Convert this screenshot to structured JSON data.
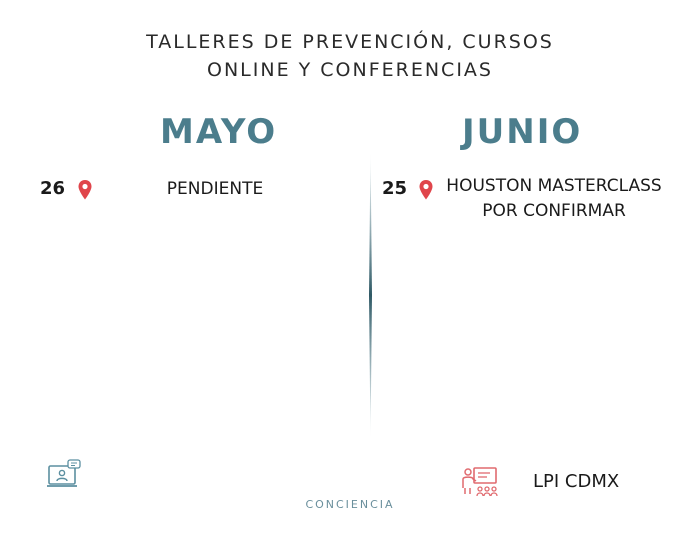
{
  "header": {
    "line1": "TALLERES DE PREVENCIÓN, CURSOS",
    "line2": "ONLINE Y CONFERENCIAS"
  },
  "months": {
    "left": "MAYO",
    "right": "JUNIO"
  },
  "events": {
    "may": {
      "day": "26",
      "text": "PENDIENTE"
    },
    "june": {
      "day": "25",
      "line1": "HOUSTON MASTERCLASS",
      "line2": "POR CONFIRMAR"
    }
  },
  "footer": {
    "right_label": "LPI CDMX",
    "brand": "CONCIENCIA"
  },
  "colors": {
    "accent": "#4b7d8c",
    "pin": "#e0454b",
    "icon_left": "#5b8fa0",
    "icon_right": "#e06a6f"
  },
  "icons": {
    "pin": "location-pin-icon",
    "online": "online-class-icon",
    "presenter": "presenter-icon"
  }
}
